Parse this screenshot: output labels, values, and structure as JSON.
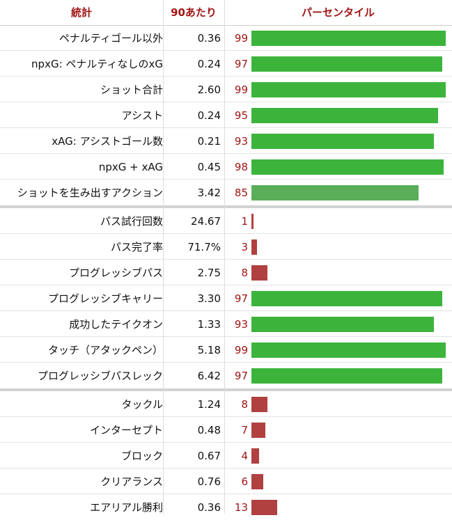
{
  "header": {
    "stat": "統計",
    "per90": "90あたり",
    "percentile": "パーセンタイル"
  },
  "colors": {
    "header_text": "#a01515",
    "percentile_text": "#a01515",
    "bar_high": "#3cb43c",
    "bar_mid": "#5aae5a",
    "bar_low": "#b14040"
  },
  "chart_data": {
    "type": "bar",
    "xlim": [
      0,
      100
    ],
    "groups": [
      {
        "rows": [
          {
            "stat": "ペナルティゴール以外",
            "per90": "0.36",
            "percentile": 99
          },
          {
            "stat": "npxG: ペナルティなしのxG",
            "per90": "0.24",
            "percentile": 97
          },
          {
            "stat": "ショット合計",
            "per90": "2.60",
            "percentile": 99
          },
          {
            "stat": "アシスト",
            "per90": "0.24",
            "percentile": 95
          },
          {
            "stat": "xAG: アシストゴール数",
            "per90": "0.21",
            "percentile": 93
          },
          {
            "stat": "npxG + xAG",
            "per90": "0.45",
            "percentile": 98
          },
          {
            "stat": "ショットを生み出すアクション",
            "per90": "3.42",
            "percentile": 85
          }
        ]
      },
      {
        "rows": [
          {
            "stat": "パス試行回数",
            "per90": "24.67",
            "percentile": 1
          },
          {
            "stat": "パス完了率",
            "per90": "71.7%",
            "percentile": 3
          },
          {
            "stat": "プログレッシブパス",
            "per90": "2.75",
            "percentile": 8
          },
          {
            "stat": "プログレッシブキャリー",
            "per90": "3.30",
            "percentile": 97
          },
          {
            "stat": "成功したテイクオン",
            "per90": "1.33",
            "percentile": 93
          },
          {
            "stat": "タッチ（アタックペン）",
            "per90": "5.18",
            "percentile": 99
          },
          {
            "stat": "プログレッシブパスレック",
            "per90": "6.42",
            "percentile": 97
          }
        ]
      },
      {
        "rows": [
          {
            "stat": "タックル",
            "per90": "1.24",
            "percentile": 8
          },
          {
            "stat": "インターセプト",
            "per90": "0.48",
            "percentile": 7
          },
          {
            "stat": "ブロック",
            "per90": "0.67",
            "percentile": 4
          },
          {
            "stat": "クリアランス",
            "per90": "0.76",
            "percentile": 6
          },
          {
            "stat": "エアリアル勝利",
            "per90": "0.36",
            "percentile": 13
          }
        ]
      }
    ]
  }
}
